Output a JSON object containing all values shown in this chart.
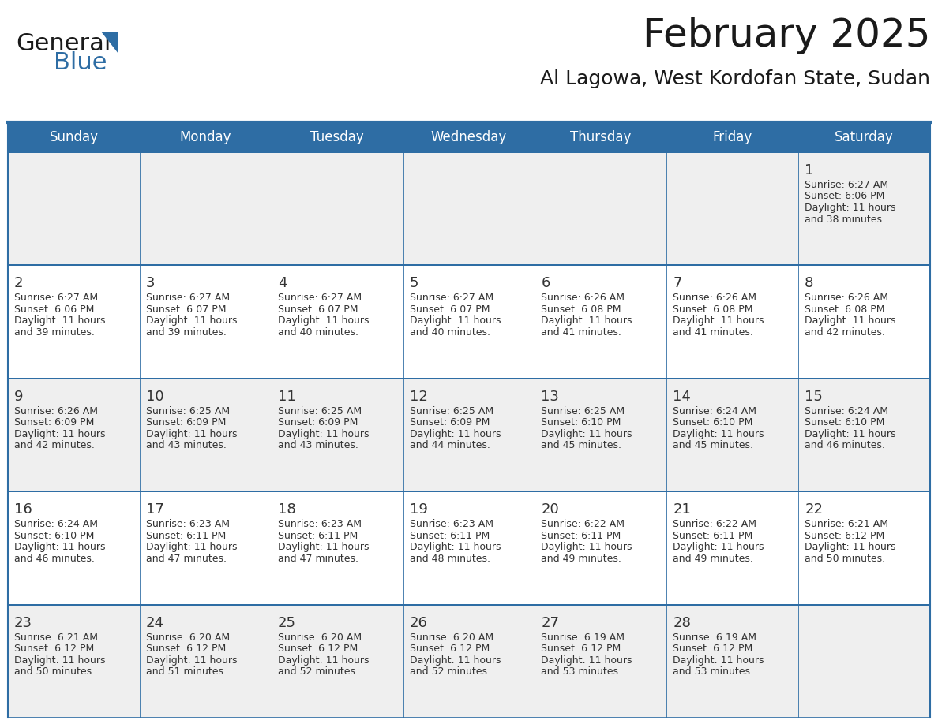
{
  "title": "February 2025",
  "subtitle": "Al Lagowa, West Kordofan State, Sudan",
  "header_bg": "#2E6DA4",
  "header_text": "#FFFFFF",
  "cell_bg_light": "#EFEFEF",
  "cell_bg_white": "#FFFFFF",
  "cell_border_color": "#2E6DA4",
  "day_number_color": "#333333",
  "info_text_color": "#333333",
  "days_of_week": [
    "Sunday",
    "Monday",
    "Tuesday",
    "Wednesday",
    "Thursday",
    "Friday",
    "Saturday"
  ],
  "weeks": [
    [
      {
        "day": null,
        "sunrise": null,
        "sunset": null,
        "daylight_line1": null,
        "daylight_line2": null
      },
      {
        "day": null,
        "sunrise": null,
        "sunset": null,
        "daylight_line1": null,
        "daylight_line2": null
      },
      {
        "day": null,
        "sunrise": null,
        "sunset": null,
        "daylight_line1": null,
        "daylight_line2": null
      },
      {
        "day": null,
        "sunrise": null,
        "sunset": null,
        "daylight_line1": null,
        "daylight_line2": null
      },
      {
        "day": null,
        "sunrise": null,
        "sunset": null,
        "daylight_line1": null,
        "daylight_line2": null
      },
      {
        "day": null,
        "sunrise": null,
        "sunset": null,
        "daylight_line1": null,
        "daylight_line2": null
      },
      {
        "day": 1,
        "sunrise": "6:27 AM",
        "sunset": "6:06 PM",
        "daylight_line1": "Daylight: 11 hours",
        "daylight_line2": "and 38 minutes."
      }
    ],
    [
      {
        "day": 2,
        "sunrise": "6:27 AM",
        "sunset": "6:06 PM",
        "daylight_line1": "Daylight: 11 hours",
        "daylight_line2": "and 39 minutes."
      },
      {
        "day": 3,
        "sunrise": "6:27 AM",
        "sunset": "6:07 PM",
        "daylight_line1": "Daylight: 11 hours",
        "daylight_line2": "and 39 minutes."
      },
      {
        "day": 4,
        "sunrise": "6:27 AM",
        "sunset": "6:07 PM",
        "daylight_line1": "Daylight: 11 hours",
        "daylight_line2": "and 40 minutes."
      },
      {
        "day": 5,
        "sunrise": "6:27 AM",
        "sunset": "6:07 PM",
        "daylight_line1": "Daylight: 11 hours",
        "daylight_line2": "and 40 minutes."
      },
      {
        "day": 6,
        "sunrise": "6:26 AM",
        "sunset": "6:08 PM",
        "daylight_line1": "Daylight: 11 hours",
        "daylight_line2": "and 41 minutes."
      },
      {
        "day": 7,
        "sunrise": "6:26 AM",
        "sunset": "6:08 PM",
        "daylight_line1": "Daylight: 11 hours",
        "daylight_line2": "and 41 minutes."
      },
      {
        "day": 8,
        "sunrise": "6:26 AM",
        "sunset": "6:08 PM",
        "daylight_line1": "Daylight: 11 hours",
        "daylight_line2": "and 42 minutes."
      }
    ],
    [
      {
        "day": 9,
        "sunrise": "6:26 AM",
        "sunset": "6:09 PM",
        "daylight_line1": "Daylight: 11 hours",
        "daylight_line2": "and 42 minutes."
      },
      {
        "day": 10,
        "sunrise": "6:25 AM",
        "sunset": "6:09 PM",
        "daylight_line1": "Daylight: 11 hours",
        "daylight_line2": "and 43 minutes."
      },
      {
        "day": 11,
        "sunrise": "6:25 AM",
        "sunset": "6:09 PM",
        "daylight_line1": "Daylight: 11 hours",
        "daylight_line2": "and 43 minutes."
      },
      {
        "day": 12,
        "sunrise": "6:25 AM",
        "sunset": "6:09 PM",
        "daylight_line1": "Daylight: 11 hours",
        "daylight_line2": "and 44 minutes."
      },
      {
        "day": 13,
        "sunrise": "6:25 AM",
        "sunset": "6:10 PM",
        "daylight_line1": "Daylight: 11 hours",
        "daylight_line2": "and 45 minutes."
      },
      {
        "day": 14,
        "sunrise": "6:24 AM",
        "sunset": "6:10 PM",
        "daylight_line1": "Daylight: 11 hours",
        "daylight_line2": "and 45 minutes."
      },
      {
        "day": 15,
        "sunrise": "6:24 AM",
        "sunset": "6:10 PM",
        "daylight_line1": "Daylight: 11 hours",
        "daylight_line2": "and 46 minutes."
      }
    ],
    [
      {
        "day": 16,
        "sunrise": "6:24 AM",
        "sunset": "6:10 PM",
        "daylight_line1": "Daylight: 11 hours",
        "daylight_line2": "and 46 minutes."
      },
      {
        "day": 17,
        "sunrise": "6:23 AM",
        "sunset": "6:11 PM",
        "daylight_line1": "Daylight: 11 hours",
        "daylight_line2": "and 47 minutes."
      },
      {
        "day": 18,
        "sunrise": "6:23 AM",
        "sunset": "6:11 PM",
        "daylight_line1": "Daylight: 11 hours",
        "daylight_line2": "and 47 minutes."
      },
      {
        "day": 19,
        "sunrise": "6:23 AM",
        "sunset": "6:11 PM",
        "daylight_line1": "Daylight: 11 hours",
        "daylight_line2": "and 48 minutes."
      },
      {
        "day": 20,
        "sunrise": "6:22 AM",
        "sunset": "6:11 PM",
        "daylight_line1": "Daylight: 11 hours",
        "daylight_line2": "and 49 minutes."
      },
      {
        "day": 21,
        "sunrise": "6:22 AM",
        "sunset": "6:11 PM",
        "daylight_line1": "Daylight: 11 hours",
        "daylight_line2": "and 49 minutes."
      },
      {
        "day": 22,
        "sunrise": "6:21 AM",
        "sunset": "6:12 PM",
        "daylight_line1": "Daylight: 11 hours",
        "daylight_line2": "and 50 minutes."
      }
    ],
    [
      {
        "day": 23,
        "sunrise": "6:21 AM",
        "sunset": "6:12 PM",
        "daylight_line1": "Daylight: 11 hours",
        "daylight_line2": "and 50 minutes."
      },
      {
        "day": 24,
        "sunrise": "6:20 AM",
        "sunset": "6:12 PM",
        "daylight_line1": "Daylight: 11 hours",
        "daylight_line2": "and 51 minutes."
      },
      {
        "day": 25,
        "sunrise": "6:20 AM",
        "sunset": "6:12 PM",
        "daylight_line1": "Daylight: 11 hours",
        "daylight_line2": "and 52 minutes."
      },
      {
        "day": 26,
        "sunrise": "6:20 AM",
        "sunset": "6:12 PM",
        "daylight_line1": "Daylight: 11 hours",
        "daylight_line2": "and 52 minutes."
      },
      {
        "day": 27,
        "sunrise": "6:19 AM",
        "sunset": "6:12 PM",
        "daylight_line1": "Daylight: 11 hours",
        "daylight_line2": "and 53 minutes."
      },
      {
        "day": 28,
        "sunrise": "6:19 AM",
        "sunset": "6:12 PM",
        "daylight_line1": "Daylight: 11 hours",
        "daylight_line2": "and 53 minutes."
      },
      {
        "day": null,
        "sunrise": null,
        "sunset": null,
        "daylight_line1": null,
        "daylight_line2": null
      }
    ]
  ],
  "logo_text1": "General",
  "logo_text2": "Blue",
  "logo_color1": "#1a1a1a",
  "logo_color2": "#2E6DA4",
  "logo_triangle_color": "#2E6DA4",
  "title_fontsize": 36,
  "subtitle_fontsize": 18,
  "dow_fontsize": 12,
  "day_num_fontsize": 13,
  "cell_text_fontsize": 9
}
